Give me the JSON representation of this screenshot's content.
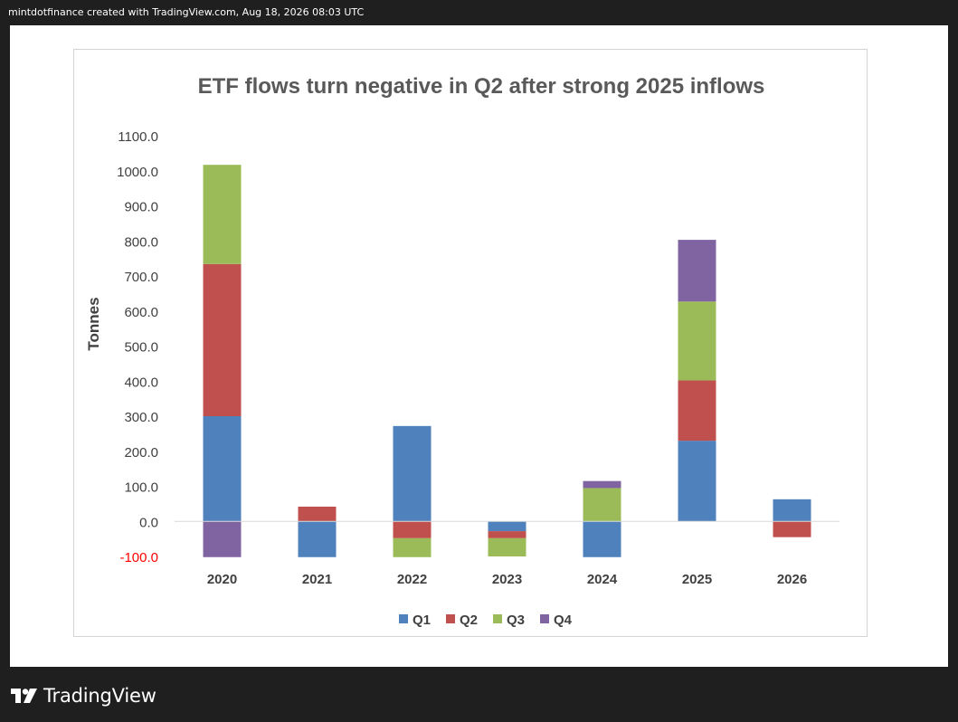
{
  "header": {
    "caption": "mintdotfinance created with TradingView.com, Aug 18, 2026 08:03 UTC"
  },
  "footer": {
    "brand": "TradingView",
    "logo_icon": "tradingview-logo-icon"
  },
  "colors": {
    "Q1": "#4f81bd",
    "Q2": "#c0504d",
    "Q3": "#9bbb59",
    "Q4": "#8064a2",
    "negative_tick": "#ff0000",
    "axis_text": "#404040",
    "title_text": "#595959"
  },
  "chart_data": {
    "type": "bar",
    "stacked": true,
    "title": "ETF flows turn negative in Q2 after strong 2025 inflows",
    "xlabel": "",
    "ylabel": "Tonnes",
    "ylim": [
      -100,
      1100
    ],
    "yticks": [
      "1100.0",
      "1000.0",
      "900.0",
      "800.0",
      "700.0",
      "600.0",
      "500.0",
      "400.0",
      "300.0",
      "200.0",
      "100.0",
      "0.0",
      "-100.0"
    ],
    "ytick_values": [
      1100,
      1000,
      900,
      800,
      700,
      600,
      500,
      400,
      300,
      200,
      100,
      0,
      -100
    ],
    "grid": false,
    "legend_position": "bottom",
    "categories": [
      "2020",
      "2021",
      "2022",
      "2023",
      "2024",
      "2025",
      "2026"
    ],
    "series": [
      {
        "name": "Q1",
        "values": [
          300,
          -102,
          272,
          -28,
          -102,
          230,
          63
        ]
      },
      {
        "name": "Q2",
        "values": [
          434,
          42,
          -48,
          -20,
          0,
          172,
          -45
        ]
      },
      {
        "name": "Q3",
        "values": [
          283,
          0,
          -54,
          -52,
          95,
          225,
          0
        ]
      },
      {
        "name": "Q4",
        "values": [
          -102,
          0,
          0,
          0,
          20,
          176,
          0
        ]
      }
    ]
  }
}
